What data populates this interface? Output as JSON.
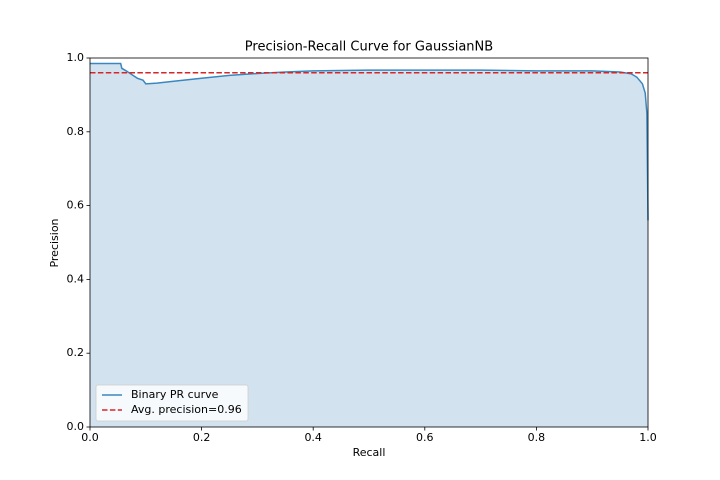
{
  "chart_data": {
    "type": "line",
    "title": "Precision-Recall Curve for GaussianNB",
    "xlabel": "Recall",
    "ylabel": "Precision",
    "xlim": [
      0,
      1
    ],
    "ylim": [
      0,
      1
    ],
    "xticks": [
      {
        "value": 0,
        "label": "0.0"
      },
      0.2,
      0.4,
      0.6,
      0.8,
      {
        "value": 1,
        "label": "1.0"
      }
    ],
    "yticks": [
      {
        "value": 0,
        "label": "0.0"
      },
      0.2,
      0.4,
      0.6,
      0.8,
      {
        "value": 1,
        "label": "1.0"
      }
    ],
    "grid": false,
    "legend": "lower left",
    "fill": true,
    "fill_color": "#d2e3ef",
    "series": [
      {
        "name": "Binary PR curve",
        "color": "#3a87c0",
        "x": [
          0,
          0.055,
          0.057,
          0.065,
          0.075,
          0.085,
          0.095,
          0.1,
          0.12,
          0.15,
          0.2,
          0.25,
          0.3,
          0.35,
          0.4,
          0.5,
          0.6,
          0.7,
          0.8,
          0.9,
          0.95,
          0.97,
          0.98,
          0.99,
          0.995,
          0.998,
          1.0
        ],
        "values": [
          0.985,
          0.985,
          0.972,
          0.965,
          0.955,
          0.945,
          0.94,
          0.93,
          0.932,
          0.937,
          0.945,
          0.953,
          0.958,
          0.962,
          0.965,
          0.967,
          0.967,
          0.967,
          0.965,
          0.965,
          0.962,
          0.957,
          0.948,
          0.93,
          0.905,
          0.85,
          0.56
        ]
      }
    ],
    "reference_lines": [
      {
        "name": "Avg. precision=0.96",
        "value": 0.96,
        "color": "#d62728",
        "style": "dashed"
      }
    ]
  }
}
